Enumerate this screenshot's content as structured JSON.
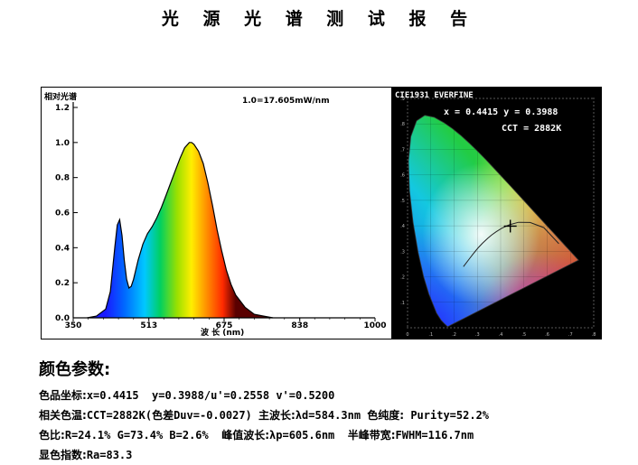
{
  "report_title": "光 源 光 谱 测 试 报 告",
  "chart_data": [
    {
      "type": "line",
      "ylabel": "相对光谱",
      "xlabel": "波 长 (nm)",
      "annotation": "1.0=17.605mW/nm",
      "xlim": [
        350,
        1000
      ],
      "ylim": [
        0,
        1.2
      ],
      "x_ticks": [
        "350",
        "513",
        "675",
        "838",
        "1000"
      ],
      "y_ticks": [
        "0.0",
        "0.2",
        "0.4",
        "0.6",
        "0.8",
        "1.0",
        "1.2"
      ],
      "fill": "rainbow",
      "series": [
        {
          "x": [
            380,
            400,
            420,
            430,
            440,
            445,
            450,
            455,
            460,
            465,
            470,
            475,
            480,
            490,
            500,
            510,
            520,
            530,
            540,
            550,
            560,
            570,
            580,
            590,
            600,
            605,
            610,
            620,
            630,
            640,
            650,
            660,
            670,
            680,
            690,
            700,
            720,
            740,
            760,
            780
          ],
          "values": [
            0.0,
            0.01,
            0.05,
            0.15,
            0.41,
            0.53,
            0.56,
            0.47,
            0.33,
            0.22,
            0.17,
            0.18,
            0.22,
            0.33,
            0.42,
            0.48,
            0.52,
            0.57,
            0.63,
            0.7,
            0.77,
            0.84,
            0.91,
            0.97,
            1.0,
            1.0,
            0.99,
            0.95,
            0.88,
            0.77,
            0.64,
            0.5,
            0.38,
            0.27,
            0.19,
            0.13,
            0.06,
            0.02,
            0.01,
            0.0
          ]
        }
      ]
    },
    {
      "type": "scatter",
      "title": "CIE1931 EVERFINE",
      "readout_xy": "x = 0.4415  y = 0.3988",
      "readout_cct": "CCT = 2882K",
      "xlim": [
        0,
        0.8
      ],
      "ylim": [
        0,
        0.9
      ],
      "x_ticks": [
        "0",
        ".1",
        ".2",
        ".3",
        ".4",
        ".5",
        ".6",
        ".7",
        ".8"
      ],
      "y_ticks": [
        ".1",
        ".2",
        ".3",
        ".4",
        ".5",
        ".6",
        ".7",
        ".8",
        ".9"
      ],
      "point": {
        "x": 0.4415,
        "y": 0.3988
      }
    }
  ],
  "params": {
    "heading": "颜色参数:",
    "chroma_label": "色品坐标:",
    "chroma_value": "x=0.4415  y=0.3988/u'=0.2558 v'=0.5200",
    "cct_label": "相关色温:",
    "cct_value": "CCT=2882K(",
    "duv_label": "色差",
    "duv_value": "Duv=-0.0027) ",
    "dom_label": "主波长:",
    "dom_value": "λd=584.3nm ",
    "purity_label": "色纯度:",
    "purity_value": " Purity=52.2%",
    "ratio_label": "色比:",
    "ratio_value": "R=24.1% G=73.4% B=2.6%  ",
    "peak_label": "峰值波长:",
    "peak_value": "λp=605.6nm  ",
    "fwhm_label": "半峰带宽:",
    "fwhm_value": "FWHM=116.7nm",
    "cri_label": "显色指数:",
    "cri_value": "Ra=83.3"
  }
}
